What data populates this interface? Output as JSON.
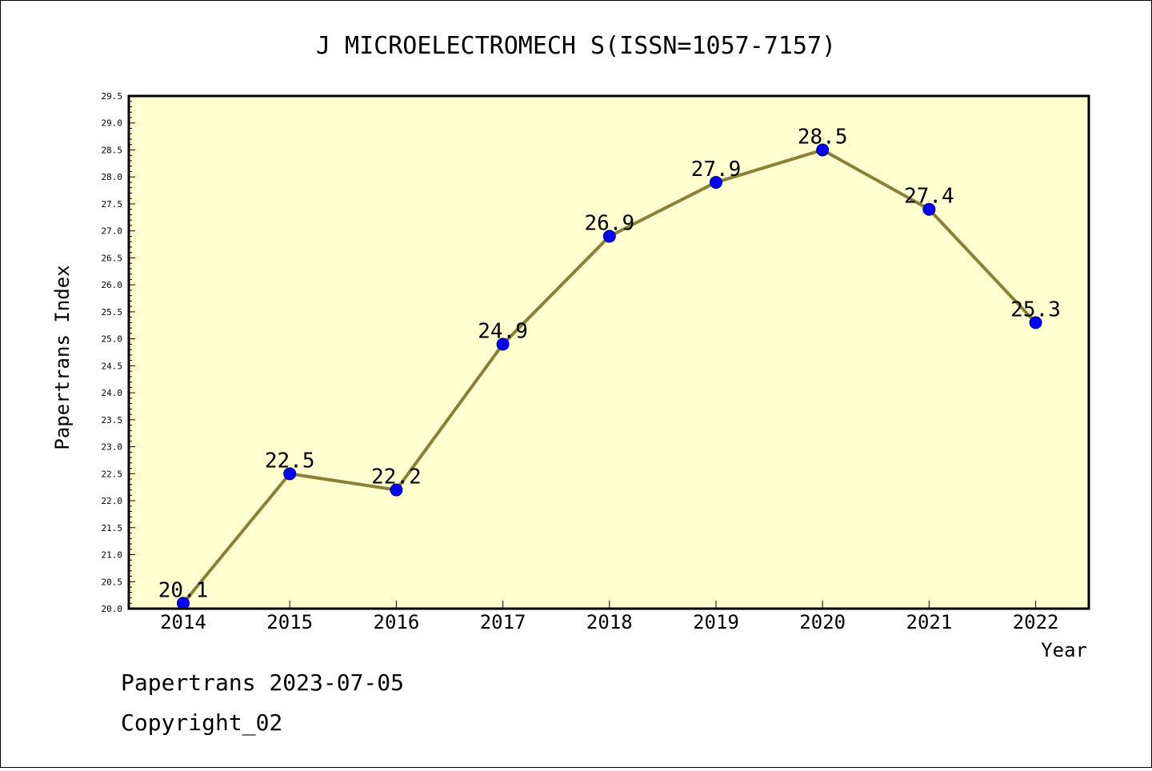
{
  "chart_data": {
    "type": "line",
    "title": "J MICROELECTROMECH S(ISSN=1057-7157)",
    "xlabel": "Year",
    "ylabel": "Papertrans Index",
    "categories": [
      "2014",
      "2015",
      "2016",
      "2017",
      "2018",
      "2019",
      "2020",
      "2021",
      "2022"
    ],
    "values": [
      20.1,
      22.5,
      22.2,
      24.9,
      26.9,
      27.9,
      28.5,
      27.4,
      25.3
    ],
    "data_labels": [
      "20.1",
      "22.5",
      "22.2",
      "24.9",
      "26.9",
      "27.9",
      "28.5",
      "27.4",
      "25.3"
    ],
    "ylim": [
      20.0,
      29.5
    ],
    "yticks": [
      "20.0",
      "20.5",
      "21.0",
      "21.5",
      "22.0",
      "22.5",
      "23.0",
      "23.5",
      "24.0",
      "24.5",
      "25.0",
      "25.5",
      "26.0",
      "26.5",
      "27.0",
      "27.5",
      "28.0",
      "28.5",
      "29.0",
      "29.5"
    ],
    "grid": false,
    "colors": {
      "plot_background": "#ffffd0",
      "line": "#8b8038",
      "marker": "#0000ff"
    }
  },
  "footer": {
    "line1": "Papertrans 2023-07-05",
    "line2": "Copyright_02"
  }
}
